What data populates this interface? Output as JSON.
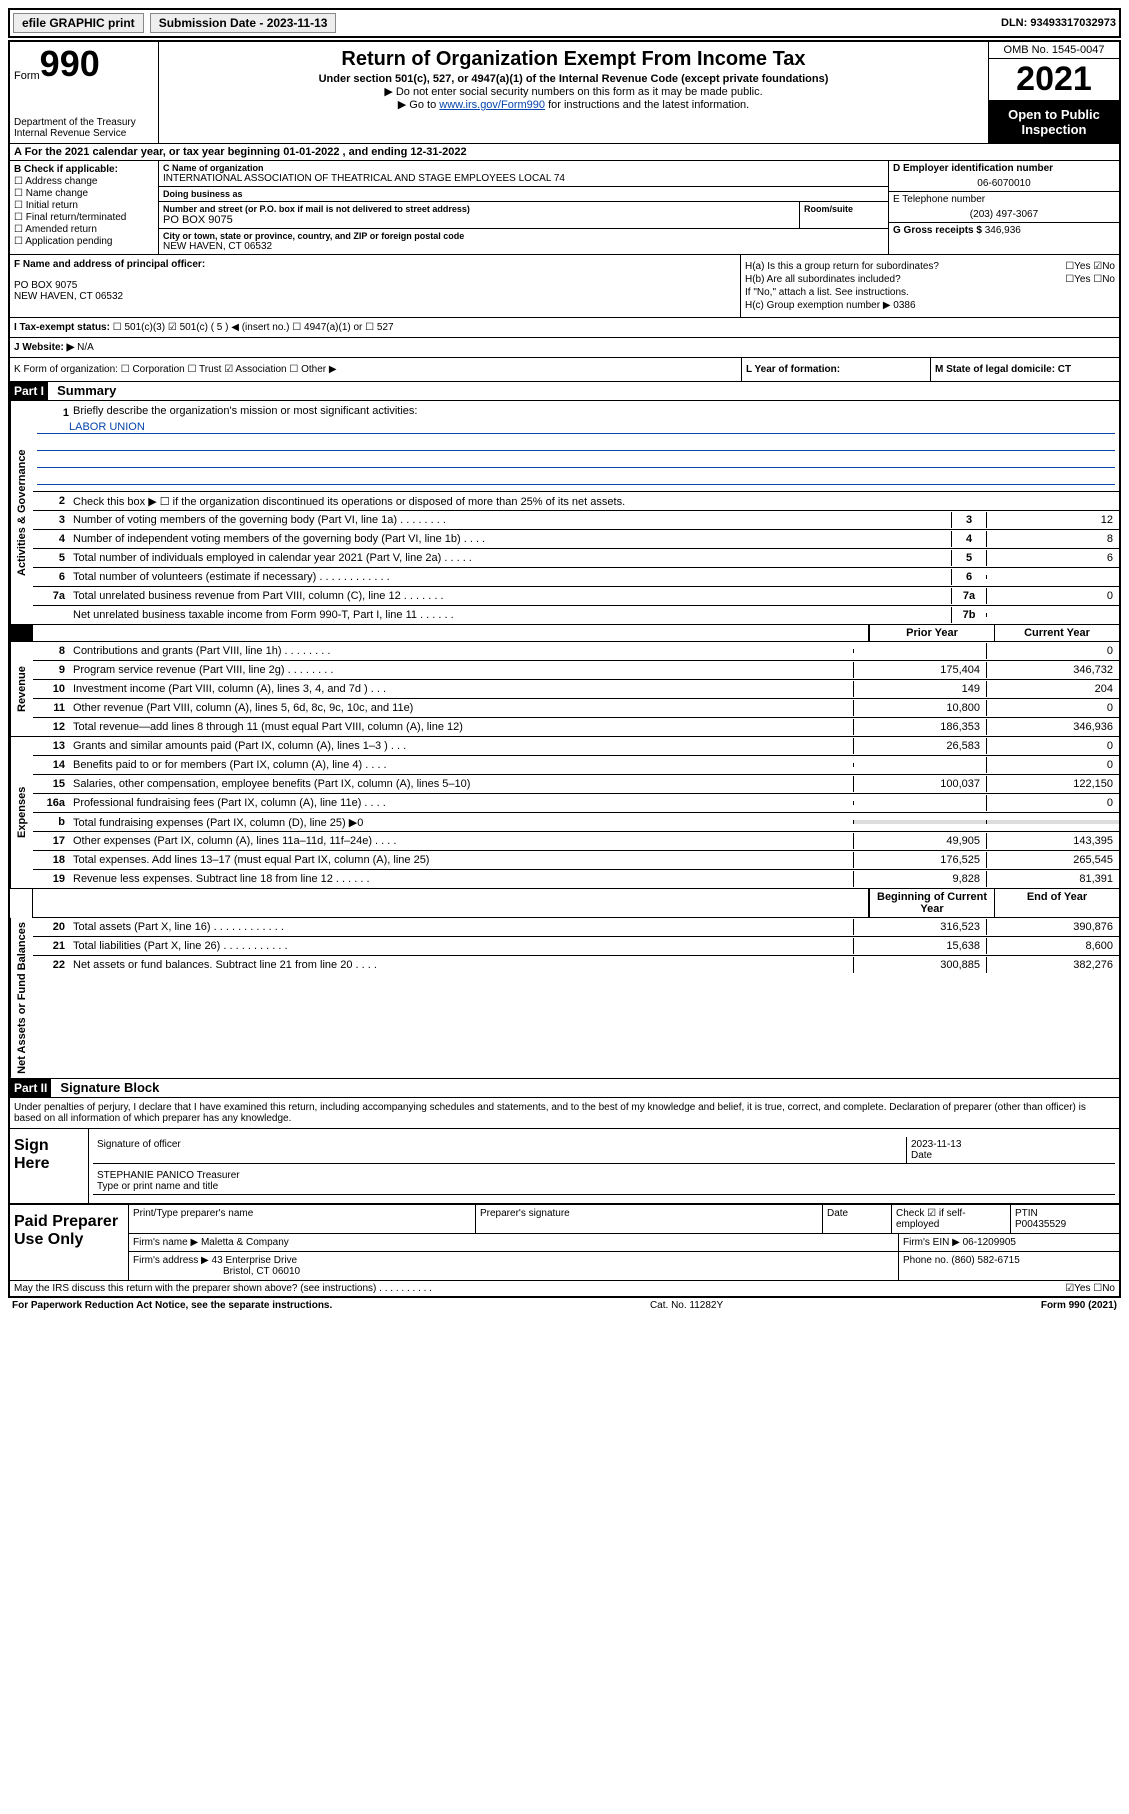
{
  "topbar": {
    "efile_btn": "efile GRAPHIC print",
    "submission_label": "Submission Date - 2023-11-13",
    "dln": "DLN: 93493317032973"
  },
  "header": {
    "form_word": "Form",
    "form_number": "990",
    "dept": "Department of the Treasury Internal Revenue Service",
    "title": "Return of Organization Exempt From Income Tax",
    "subtitle": "Under section 501(c), 527, or 4947(a)(1) of the Internal Revenue Code (except private foundations)",
    "note1": "▶ Do not enter social security numbers on this form as it may be made public.",
    "note2_pre": "▶ Go to ",
    "note2_link": "www.irs.gov/Form990",
    "note2_post": " for instructions and the latest information.",
    "omb": "OMB No. 1545-0047",
    "year": "2021",
    "open": "Open to Public Inspection"
  },
  "row_a": "A For the 2021 calendar year, or tax year beginning 01-01-2022   , and ending 12-31-2022",
  "col_b": {
    "title": "B Check if applicable:",
    "items": [
      "Address change",
      "Name change",
      "Initial return",
      "Final return/terminated",
      "Amended return",
      "Application pending"
    ]
  },
  "col_c": {
    "name_label": "C Name of organization",
    "name": "INTERNATIONAL ASSOCIATION OF THEATRICAL AND STAGE EMPLOYEES LOCAL 74",
    "dba_label": "Doing business as",
    "addr_label": "Number and street (or P.O. box if mail is not delivered to street address)",
    "addr": "PO BOX 9075",
    "room_label": "Room/suite",
    "city_label": "City or town, state or province, country, and ZIP or foreign postal code",
    "city": "NEW HAVEN, CT  06532"
  },
  "col_d": {
    "ein_label": "D Employer identification number",
    "ein": "06-6070010",
    "phone_label": "E Telephone number",
    "phone": "(203) 497-3067",
    "gross_label": "G Gross receipts $",
    "gross": "346,936"
  },
  "row_f": {
    "label": "F Name and address of principal officer:",
    "addr1": "PO BOX 9075",
    "addr2": "NEW HAVEN, CT  06532"
  },
  "row_h": {
    "ha": "H(a)  Is this a group return for subordinates?",
    "ha_ans": "☐Yes ☑No",
    "hb": "H(b)  Are all subordinates included?",
    "hb_ans": "☐Yes ☐No",
    "hb_note": "If \"No,\" attach a list. See instructions.",
    "hc": "H(c)  Group exemption number ▶   0386"
  },
  "tax_status": {
    "label": "I   Tax-exempt status:",
    "opts": "☐ 501(c)(3)   ☑ 501(c) ( 5 ) ◀ (insert no.)   ☐ 4947(a)(1) or   ☐ 527"
  },
  "website": {
    "label": "J   Website: ▶",
    "value": "N/A"
  },
  "row_k": "K Form of organization:  ☐ Corporation  ☐ Trust  ☑ Association  ☐ Other ▶",
  "row_l": "L Year of formation:",
  "row_m": "M State of legal domicile: CT",
  "part1": {
    "header": "Part I",
    "title": "Summary"
  },
  "mission": {
    "num": "1",
    "label": "Briefly describe the organization's mission or most significant activities:",
    "text": "LABOR UNION"
  },
  "line2": {
    "num": "2",
    "desc": "Check this box ▶ ☐  if the organization discontinued its operations or disposed of more than 25% of its net assets."
  },
  "governance_lines": [
    {
      "num": "3",
      "desc": "Number of voting members of the governing body (Part VI, line 1a)   .   .   .   .   .   .   .   .",
      "box": "3",
      "val": "12"
    },
    {
      "num": "4",
      "desc": "Number of independent voting members of the governing body (Part VI, line 1b)    .   .   .   .",
      "box": "4",
      "val": "8"
    },
    {
      "num": "5",
      "desc": "Total number of individuals employed in calendar year 2021 (Part V, line 2a)   .   .   .   .   .",
      "box": "5",
      "val": "6"
    },
    {
      "num": "6",
      "desc": "Total number of volunteers (estimate if necessary)    .   .   .   .   .   .   .   .   .   .   .   .",
      "box": "6",
      "val": ""
    },
    {
      "num": "7a",
      "desc": "Total unrelated business revenue from Part VIII, column (C), line 12   .   .   .   .   .   .   .",
      "box": "7a",
      "val": "0"
    },
    {
      "num": "",
      "desc": "Net unrelated business taxable income from Form 990-T, Part I, line 11   .   .   .   .   .   .",
      "box": "7b",
      "val": ""
    }
  ],
  "col_headers": {
    "prior": "Prior Year",
    "current": "Current Year"
  },
  "revenue_lines": [
    {
      "num": "8",
      "desc": "Contributions and grants (Part VIII, line 1h)   .   .   .   .   .   .   .   .",
      "prior": "",
      "curr": "0"
    },
    {
      "num": "9",
      "desc": "Program service revenue (Part VIII, line 2g)   .   .   .   .   .   .   .   .",
      "prior": "175,404",
      "curr": "346,732"
    },
    {
      "num": "10",
      "desc": "Investment income (Part VIII, column (A), lines 3, 4, and 7d )   .   .   .",
      "prior": "149",
      "curr": "204"
    },
    {
      "num": "11",
      "desc": "Other revenue (Part VIII, column (A), lines 5, 6d, 8c, 9c, 10c, and 11e)",
      "prior": "10,800",
      "curr": "0"
    },
    {
      "num": "12",
      "desc": "Total revenue—add lines 8 through 11 (must equal Part VIII, column (A), line 12)",
      "prior": "186,353",
      "curr": "346,936"
    }
  ],
  "expense_lines": [
    {
      "num": "13",
      "desc": "Grants and similar amounts paid (Part IX, column (A), lines 1–3 )   .   .   .",
      "prior": "26,583",
      "curr": "0"
    },
    {
      "num": "14",
      "desc": "Benefits paid to or for members (Part IX, column (A), line 4)   .   .   .   .",
      "prior": "",
      "curr": "0"
    },
    {
      "num": "15",
      "desc": "Salaries, other compensation, employee benefits (Part IX, column (A), lines 5–10)",
      "prior": "100,037",
      "curr": "122,150"
    },
    {
      "num": "16a",
      "desc": "Professional fundraising fees (Part IX, column (A), line 11e)   .   .   .   .",
      "prior": "",
      "curr": "0"
    },
    {
      "num": "b",
      "desc": "Total fundraising expenses (Part IX, column (D), line 25) ▶0",
      "prior": "shaded",
      "curr": "shaded"
    },
    {
      "num": "17",
      "desc": "Other expenses (Part IX, column (A), lines 11a–11d, 11f–24e)   .   .   .   .",
      "prior": "49,905",
      "curr": "143,395"
    },
    {
      "num": "18",
      "desc": "Total expenses. Add lines 13–17 (must equal Part IX, column (A), line 25)",
      "prior": "176,525",
      "curr": "265,545"
    },
    {
      "num": "19",
      "desc": "Revenue less expenses. Subtract line 18 from line 12   .   .   .   .   .   .",
      "prior": "9,828",
      "curr": "81,391"
    }
  ],
  "balance_headers": {
    "begin": "Beginning of Current Year",
    "end": "End of Year"
  },
  "balance_lines": [
    {
      "num": "20",
      "desc": "Total assets (Part X, line 16)   .   .   .   .   .   .   .   .   .   .   .   .",
      "prior": "316,523",
      "curr": "390,876"
    },
    {
      "num": "21",
      "desc": "Total liabilities (Part X, line 26)   .   .   .   .   .   .   .   .   .   .   .",
      "prior": "15,638",
      "curr": "8,600"
    },
    {
      "num": "22",
      "desc": "Net assets or fund balances. Subtract line 21 from line 20   .   .   .   .",
      "prior": "300,885",
      "curr": "382,276"
    }
  ],
  "part2": {
    "header": "Part II",
    "title": "Signature Block"
  },
  "declaration": "Under penalties of perjury, I declare that I have examined this return, including accompanying schedules and statements, and to the best of my knowledge and belief, it is true, correct, and complete. Declaration of preparer (other than officer) is based on all information of which preparer has any knowledge.",
  "sign": {
    "label": "Sign Here",
    "sig_of_officer": "Signature of officer",
    "date_label": "Date",
    "date": "2023-11-13",
    "name": "STEPHANIE PANICO Treasurer",
    "name_label": "Type or print name and title"
  },
  "preparer": {
    "label": "Paid Preparer Use Only",
    "h1": "Print/Type preparer's name",
    "h2": "Preparer's signature",
    "h3": "Date",
    "h4_pre": "Check ☑ if self-employed",
    "h5": "PTIN",
    "ptin": "P00435529",
    "firm_name_label": "Firm's name    ▶",
    "firm_name": "Maletta & Company",
    "firm_ein_label": "Firm's EIN ▶",
    "firm_ein": "06-1209905",
    "firm_addr_label": "Firm's address ▶",
    "firm_addr1": "43 Enterprise Drive",
    "firm_addr2": "Bristol, CT  06010",
    "phone_label": "Phone no.",
    "phone": "(860) 582-6715"
  },
  "footer": {
    "discuss": "May the IRS discuss this return with the preparer shown above? (see instructions)   .   .   .   .   .   .   .   .   .   .",
    "discuss_ans": "☑Yes  ☐No",
    "paperwork": "For Paperwork Reduction Act Notice, see the separate instructions.",
    "cat": "Cat. No. 11282Y",
    "form": "Form 990 (2021)"
  },
  "side_labels": {
    "gov": "Activities & Governance",
    "rev": "Revenue",
    "exp": "Expenses",
    "bal": "Net Assets or Fund Balances"
  }
}
